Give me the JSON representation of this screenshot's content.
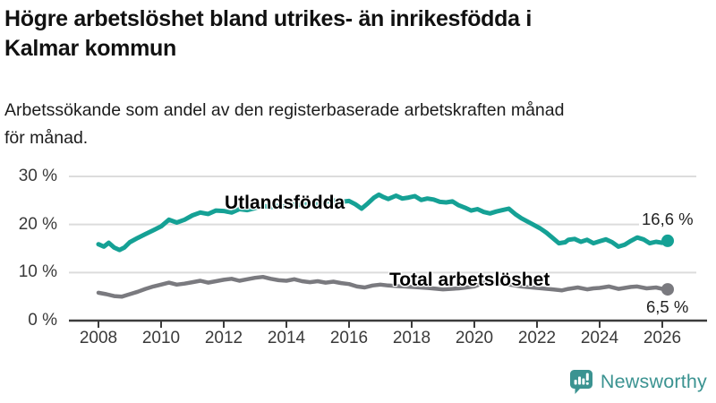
{
  "header": {
    "title_lines": [
      "Högre arbetslöshet bland utrikes- än inrikesfödda i",
      "Kalmar kommun"
    ],
    "subtitle_lines": [
      "Arbetssökande som andel av den registerbaserade arbetskraften månad",
      "för månad."
    ]
  },
  "footer": {
    "brand": "Newsworthy",
    "brand_color": "#3b9391",
    "logo_icon": "speech-bubble-bar-chart"
  },
  "chart_data": {
    "type": "line",
    "title": "Högre arbetslöshet bland utrikes- än inrikesfödda i Kalmar kommun",
    "subtitle": "Arbetssökande som andel av den registerbaserade arbetskraften månad för månad.",
    "x_unit": "year (monthly values)",
    "xlim": [
      2008,
      2026.3
    ],
    "ylim": [
      0,
      30
    ],
    "grid": "horizontal",
    "grid_color": "#dcdcdc",
    "axis_color": "#3c3c3c",
    "x_ticks": [
      2008,
      2010,
      2012,
      2014,
      2016,
      2018,
      2020,
      2022,
      2024,
      2026
    ],
    "y_ticks": [
      {
        "value": 0,
        "label": "0 %"
      },
      {
        "value": 10,
        "label": "10 %"
      },
      {
        "value": 20,
        "label": "20 %"
      },
      {
        "value": 30,
        "label": "30 %"
      }
    ],
    "series": [
      {
        "name": "Utlandsfödda",
        "color": "#15a195",
        "width": 5,
        "end_label": "16,6 %",
        "end_value": 16.6,
        "points": [
          [
            2008.0,
            15.9
          ],
          [
            2008.17,
            15.4
          ],
          [
            2008.33,
            16.2
          ],
          [
            2008.5,
            15.2
          ],
          [
            2008.67,
            14.7
          ],
          [
            2008.83,
            15.2
          ],
          [
            2009.0,
            16.3
          ],
          [
            2009.25,
            17.2
          ],
          [
            2009.5,
            18.0
          ],
          [
            2009.75,
            18.8
          ],
          [
            2010.0,
            19.6
          ],
          [
            2010.25,
            21.0
          ],
          [
            2010.5,
            20.4
          ],
          [
            2010.75,
            21.0
          ],
          [
            2011.0,
            21.9
          ],
          [
            2011.25,
            22.5
          ],
          [
            2011.5,
            22.2
          ],
          [
            2011.75,
            22.9
          ],
          [
            2012.0,
            22.8
          ],
          [
            2012.25,
            22.5
          ],
          [
            2012.5,
            23.2
          ],
          [
            2012.75,
            23.0
          ],
          [
            2013.0,
            23.4
          ],
          [
            2013.25,
            23.9
          ],
          [
            2013.5,
            23.6
          ],
          [
            2013.75,
            23.9
          ],
          [
            2014.0,
            23.7
          ],
          [
            2014.25,
            24.2
          ],
          [
            2014.5,
            24.0
          ],
          [
            2014.75,
            24.4
          ],
          [
            2015.0,
            24.2
          ],
          [
            2015.25,
            24.7
          ],
          [
            2015.5,
            25.0
          ],
          [
            2015.75,
            24.7
          ],
          [
            2016.0,
            24.9
          ],
          [
            2016.2,
            24.2
          ],
          [
            2016.4,
            23.3
          ],
          [
            2016.6,
            24.4
          ],
          [
            2016.8,
            25.6
          ],
          [
            2016.95,
            26.2
          ],
          [
            2017.1,
            25.7
          ],
          [
            2017.25,
            25.3
          ],
          [
            2017.5,
            26.0
          ],
          [
            2017.7,
            25.4
          ],
          [
            2017.9,
            25.6
          ],
          [
            2018.1,
            25.9
          ],
          [
            2018.3,
            25.1
          ],
          [
            2018.5,
            25.4
          ],
          [
            2018.7,
            25.2
          ],
          [
            2018.9,
            24.7
          ],
          [
            2019.1,
            24.6
          ],
          [
            2019.3,
            24.8
          ],
          [
            2019.5,
            24.0
          ],
          [
            2019.7,
            23.5
          ],
          [
            2019.9,
            22.9
          ],
          [
            2020.1,
            23.2
          ],
          [
            2020.3,
            22.6
          ],
          [
            2020.5,
            22.3
          ],
          [
            2020.7,
            22.7
          ],
          [
            2020.9,
            23.0
          ],
          [
            2021.1,
            23.3
          ],
          [
            2021.3,
            22.2
          ],
          [
            2021.5,
            21.3
          ],
          [
            2021.7,
            20.6
          ],
          [
            2021.9,
            19.9
          ],
          [
            2022.1,
            19.2
          ],
          [
            2022.3,
            18.3
          ],
          [
            2022.5,
            17.2
          ],
          [
            2022.7,
            16.1
          ],
          [
            2022.9,
            16.3
          ],
          [
            2023.0,
            16.8
          ],
          [
            2023.2,
            17.0
          ],
          [
            2023.4,
            16.4
          ],
          [
            2023.6,
            16.8
          ],
          [
            2023.8,
            16.1
          ],
          [
            2024.0,
            16.5
          ],
          [
            2024.2,
            16.9
          ],
          [
            2024.4,
            16.3
          ],
          [
            2024.6,
            15.4
          ],
          [
            2024.8,
            15.8
          ],
          [
            2025.0,
            16.6
          ],
          [
            2025.2,
            17.3
          ],
          [
            2025.4,
            16.9
          ],
          [
            2025.6,
            16.1
          ],
          [
            2025.8,
            16.4
          ],
          [
            2026.0,
            16.2
          ],
          [
            2026.17,
            16.6
          ]
        ]
      },
      {
        "name": "Total arbetslöshet",
        "color": "#7a7a7f",
        "width": 4.5,
        "end_label": "6,5 %",
        "end_value": 6.5,
        "points": [
          [
            2008.0,
            5.8
          ],
          [
            2008.25,
            5.5
          ],
          [
            2008.5,
            5.1
          ],
          [
            2008.75,
            5.0
          ],
          [
            2009.0,
            5.5
          ],
          [
            2009.25,
            6.0
          ],
          [
            2009.5,
            6.6
          ],
          [
            2009.75,
            7.1
          ],
          [
            2010.0,
            7.5
          ],
          [
            2010.25,
            7.9
          ],
          [
            2010.5,
            7.5
          ],
          [
            2010.75,
            7.7
          ],
          [
            2011.0,
            8.0
          ],
          [
            2011.25,
            8.3
          ],
          [
            2011.5,
            7.9
          ],
          [
            2011.75,
            8.2
          ],
          [
            2012.0,
            8.5
          ],
          [
            2012.25,
            8.7
          ],
          [
            2012.5,
            8.3
          ],
          [
            2012.75,
            8.6
          ],
          [
            2013.0,
            8.9
          ],
          [
            2013.25,
            9.1
          ],
          [
            2013.5,
            8.7
          ],
          [
            2013.75,
            8.4
          ],
          [
            2014.0,
            8.3
          ],
          [
            2014.25,
            8.6
          ],
          [
            2014.5,
            8.2
          ],
          [
            2014.75,
            8.0
          ],
          [
            2015.0,
            8.2
          ],
          [
            2015.25,
            7.9
          ],
          [
            2015.5,
            8.1
          ],
          [
            2015.75,
            7.8
          ],
          [
            2016.0,
            7.6
          ],
          [
            2016.25,
            7.1
          ],
          [
            2016.5,
            6.9
          ],
          [
            2016.75,
            7.3
          ],
          [
            2017.0,
            7.5
          ],
          [
            2017.25,
            7.3
          ],
          [
            2017.5,
            7.2
          ],
          [
            2017.75,
            7.1
          ],
          [
            2018.0,
            7.0
          ],
          [
            2018.5,
            6.8
          ],
          [
            2019.0,
            6.5
          ],
          [
            2019.5,
            6.7
          ],
          [
            2020.0,
            7.1
          ],
          [
            2020.4,
            8.1
          ],
          [
            2020.7,
            7.9
          ],
          [
            2021.0,
            7.6
          ],
          [
            2021.5,
            7.1
          ],
          [
            2022.0,
            6.8
          ],
          [
            2022.5,
            6.5
          ],
          [
            2022.8,
            6.3
          ],
          [
            2023.0,
            6.6
          ],
          [
            2023.3,
            6.9
          ],
          [
            2023.6,
            6.5
          ],
          [
            2023.8,
            6.7
          ],
          [
            2024.0,
            6.8
          ],
          [
            2024.3,
            7.1
          ],
          [
            2024.6,
            6.6
          ],
          [
            2024.8,
            6.8
          ],
          [
            2025.0,
            7.0
          ],
          [
            2025.2,
            7.1
          ],
          [
            2025.5,
            6.7
          ],
          [
            2025.8,
            6.9
          ],
          [
            2026.0,
            6.6
          ],
          [
            2026.17,
            6.5
          ]
        ]
      }
    ]
  }
}
